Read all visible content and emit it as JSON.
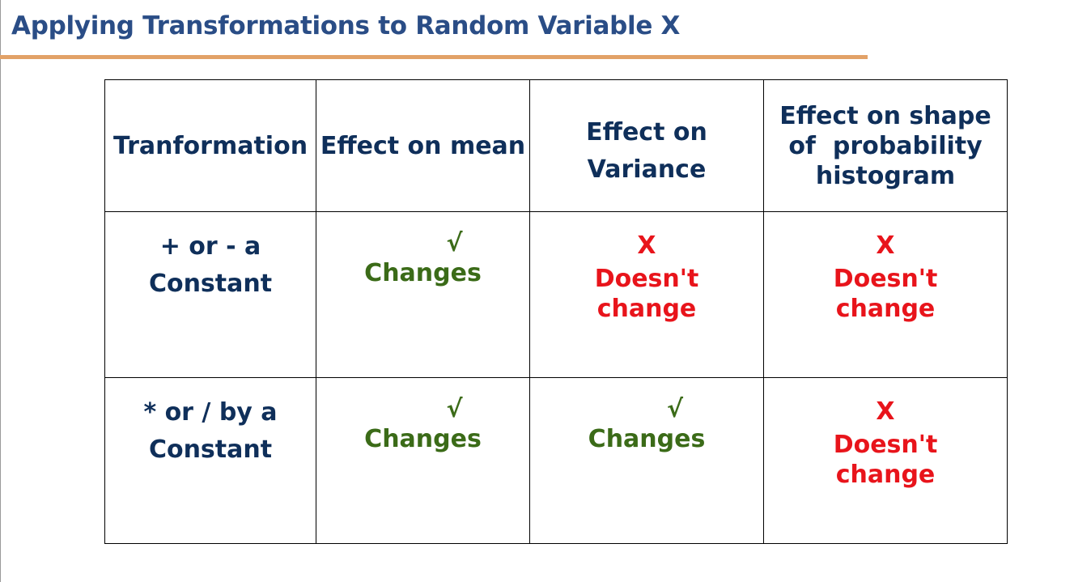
{
  "title": "Applying Transformations to Random Variable X",
  "table": {
    "headers": [
      [
        "Tranformation"
      ],
      [
        "Effect on mean"
      ],
      [
        "Effect on",
        "Variance"
      ],
      [
        "Effect on shape",
        "of  probability",
        "histogram"
      ]
    ],
    "rows": [
      {
        "label": [
          "+ or - a",
          "Constant"
        ],
        "mean": {
          "mark": "√",
          "text": "Changes"
        },
        "variance": {
          "mark": "X",
          "text": [
            "Doesn't",
            "change"
          ]
        },
        "shape": {
          "mark": "X",
          "text": [
            "Doesn't",
            "change"
          ]
        }
      },
      {
        "label": [
          "* or / by a",
          "Constant"
        ],
        "mean": {
          "mark": "√",
          "text": "Changes"
        },
        "variance": {
          "mark": "√",
          "text": "Changes"
        },
        "shape": {
          "mark": "X",
          "text": [
            "Doesn't",
            "change"
          ]
        }
      }
    ]
  },
  "colors": {
    "title": "#2a4d86",
    "rule": "#e2a268",
    "header_text": "#0f2f5a",
    "changes": "#3b6b18",
    "doesnt_change": "#e8141b"
  }
}
